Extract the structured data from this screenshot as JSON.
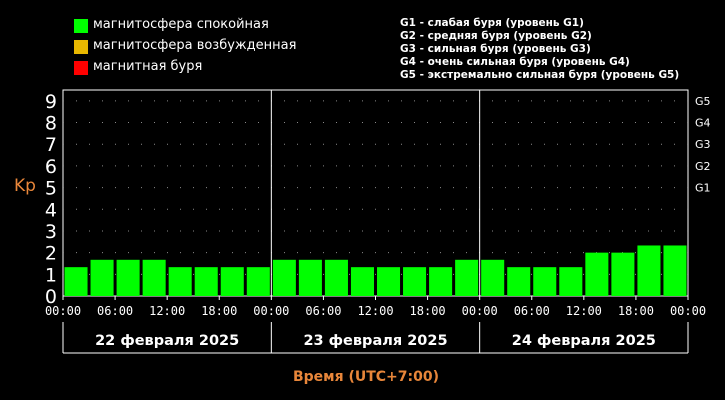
{
  "legend_left": [
    {
      "label": "магнитосфера спокойная",
      "color": "#00ff00"
    },
    {
      "label": "магнитосфера возбужденная",
      "color": "#e8b800"
    },
    {
      "label": "магнитная буря",
      "color": "#ff0000"
    }
  ],
  "legend_right": [
    "G1 - слабая буря (уровень G1)",
    "G2 - средняя буря (уровень G2)",
    "G3 - сильная буря (уровень G3)",
    "G4 - очень сильная буря (уровень G4)",
    "G5 - экстремально сильная буря (уровень G5)"
  ],
  "chart_data": {
    "type": "bar",
    "ylabel": "Kp",
    "xlabel": "Время (UTC+7:00)",
    "ylim": [
      0,
      9.5
    ],
    "yticks": [
      "0",
      "1",
      "2",
      "3",
      "4",
      "5",
      "6",
      "7",
      "8",
      "9"
    ],
    "g_levels": [
      {
        "label": "G1",
        "kp": 5
      },
      {
        "label": "G2",
        "kp": 6
      },
      {
        "label": "G3",
        "kp": 7
      },
      {
        "label": "G4",
        "kp": 8
      },
      {
        "label": "G5",
        "kp": 9
      }
    ],
    "x_tick_labels": [
      "00:00",
      "06:00",
      "12:00",
      "18:00",
      "00:00",
      "06:00",
      "12:00",
      "18:00",
      "00:00",
      "06:00",
      "12:00",
      "18:00",
      "00:00"
    ],
    "days": [
      "22 февраля 2025",
      "23 февраля 2025",
      "24 февраля 2025"
    ],
    "series": [
      {
        "values": [
          1.33,
          1.67,
          1.67,
          1.67,
          1.33,
          1.33,
          1.33,
          1.33,
          1.67,
          1.67,
          1.67,
          1.33,
          1.33,
          1.33,
          1.33,
          1.67,
          1.67,
          1.33,
          1.33,
          1.33,
          2.0,
          2.0,
          2.33,
          2.33
        ]
      }
    ],
    "bar_color": "#00ff00"
  }
}
